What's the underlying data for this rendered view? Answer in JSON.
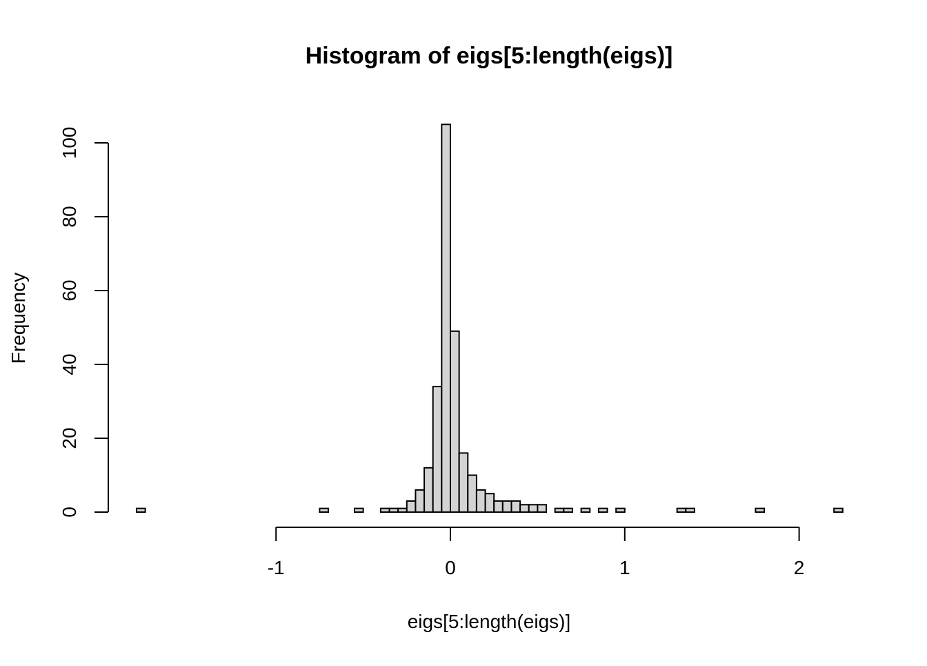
{
  "chart_data": {
    "type": "bar",
    "title": "Histogram of eigs[5:length(eigs)]",
    "xlabel": "eigs[5:length(eigs)]",
    "ylabel": "Frequency",
    "bin_width": 0.05,
    "bins_start": [
      -1.8,
      -1.75,
      -1.7,
      -1.65,
      -1.6,
      -1.55,
      -1.5,
      -1.45,
      -1.4,
      -1.35,
      -1.3,
      -1.25,
      -1.2,
      -1.15,
      -1.1,
      -1.05,
      -1.0,
      -0.95,
      -0.9,
      -0.85,
      -0.8,
      -0.75,
      -0.7,
      -0.65,
      -0.6,
      -0.55,
      -0.5,
      -0.45,
      -0.4,
      -0.35,
      -0.3,
      -0.25,
      -0.2,
      -0.15,
      -0.1,
      -0.05,
      0.0,
      0.05,
      0.1,
      0.15,
      0.2,
      0.25,
      0.3,
      0.35,
      0.4,
      0.45,
      0.5,
      0.55,
      0.6,
      0.65,
      0.7,
      0.75,
      0.8,
      0.85,
      0.9,
      0.95,
      1.0,
      1.05,
      1.1,
      1.15,
      1.2,
      1.25,
      1.3,
      1.35,
      1.4,
      1.45,
      1.5,
      1.55,
      1.6,
      1.65,
      1.7,
      1.75,
      1.8,
      1.85,
      1.9,
      1.95,
      2.0,
      2.05,
      2.1,
      2.15,
      2.2
    ],
    "values": [
      1,
      0,
      0,
      0,
      0,
      0,
      0,
      0,
      0,
      0,
      0,
      0,
      0,
      0,
      0,
      0,
      0,
      0,
      0,
      0,
      0,
      1,
      0,
      0,
      0,
      1,
      0,
      0,
      1,
      1,
      1,
      3,
      6,
      12,
      34,
      105,
      49,
      16,
      10,
      6,
      5,
      3,
      3,
      3,
      2,
      2,
      2,
      0,
      1,
      1,
      0,
      1,
      0,
      1,
      0,
      1,
      0,
      0,
      0,
      0,
      0,
      0,
      1,
      1,
      0,
      0,
      0,
      0,
      0,
      0,
      0,
      1,
      0,
      0,
      0,
      0,
      0,
      0,
      0,
      0,
      1
    ],
    "xlim": [
      -1.8,
      2.25
    ],
    "ylim": [
      0,
      105
    ],
    "x_ticks": [
      -1,
      0,
      1,
      2
    ],
    "x_tick_labels": [
      "-1",
      "0",
      "1",
      "2"
    ],
    "y_ticks": [
      0,
      20,
      40,
      60,
      80,
      100
    ],
    "y_tick_labels": [
      "0",
      "20",
      "40",
      "60",
      "80",
      "100"
    ],
    "grid": false,
    "bar_color": "#d3d3d3",
    "edge_color": "#000000"
  }
}
